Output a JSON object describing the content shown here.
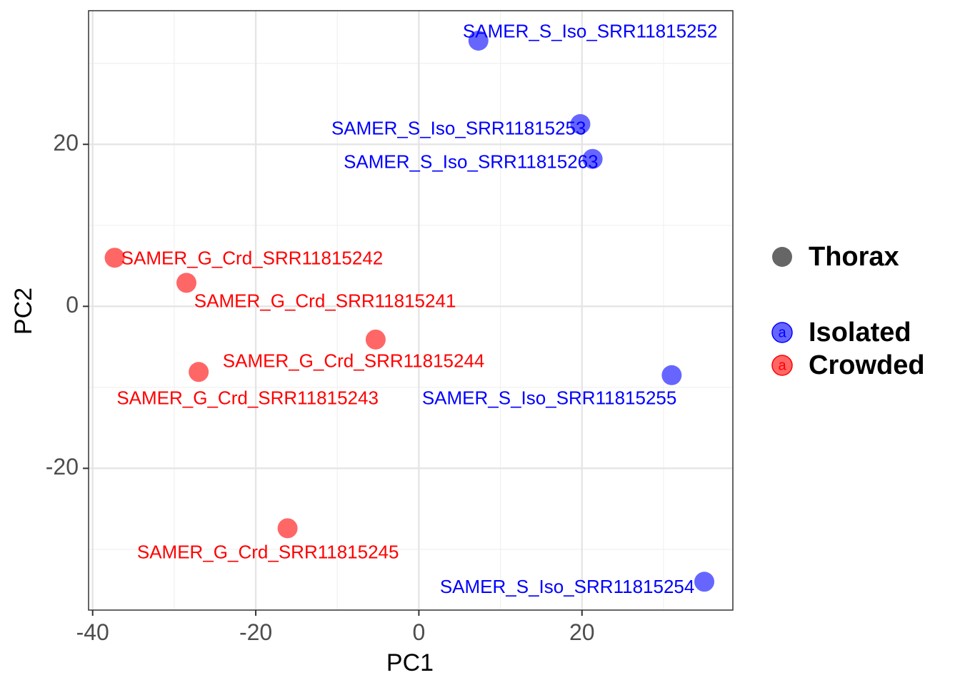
{
  "chart_data": {
    "type": "scatter",
    "xlabel": "PC1",
    "ylabel": "PC2",
    "xlim": [
      -40.5,
      38.5
    ],
    "ylim": [
      -37.5,
      36.5
    ],
    "x_ticks": [
      -40,
      -20,
      0,
      20
    ],
    "y_ticks": [
      -20,
      0,
      20
    ],
    "x_minor": [
      -30,
      -10,
      10,
      30
    ],
    "y_minor": [
      -30,
      -10,
      10,
      30
    ],
    "grid": true,
    "legend_position": "right",
    "legend": {
      "shape_entry": "Thorax",
      "groups": [
        {
          "name": "Isolated",
          "color": "#0000ff",
          "key_letter": "a"
        },
        {
          "name": "Crowded",
          "color": "#ff0000",
          "key_letter": "a"
        }
      ],
      "shape_color": "#666666"
    },
    "colors": {
      "Isolated_point": "#6666ff",
      "Crowded_point": "#ff6666",
      "Isolated_text": "#0000ff",
      "Crowded_text": "#ff0000"
    },
    "points": [
      {
        "label": "SAMER_S_Iso_SRR11815252",
        "group": "Isolated",
        "x": 7.3,
        "y": 32.8,
        "label_x": 21.0,
        "label_y": 33.8,
        "anchor": "middle"
      },
      {
        "label": "SAMER_S_Iso_SRR11815253",
        "group": "Isolated",
        "x": 19.8,
        "y": 22.5,
        "label_x": 20.5,
        "label_y": 21.8,
        "anchor": "end"
      },
      {
        "label": "SAMER_S_Iso_SRR11815263",
        "group": "Isolated",
        "x": 21.3,
        "y": 18.2,
        "label_x": 22.0,
        "label_y": 17.7,
        "anchor": "end"
      },
      {
        "label": "SAMER_G_Crd_SRR11815242",
        "group": "Crowded",
        "x": -37.3,
        "y": 6.0,
        "label_x": -36.5,
        "label_y": 5.8,
        "anchor": "start"
      },
      {
        "label": "SAMER_G_Crd_SRR11815241",
        "group": "Crowded",
        "x": -28.5,
        "y": 2.9,
        "label_x": -11.5,
        "label_y": 0.5,
        "anchor": "middle"
      },
      {
        "label": "SAMER_G_Crd_SRR11815244",
        "group": "Crowded",
        "x": -5.3,
        "y": -4.1,
        "label_x": -8.0,
        "label_y": -6.9,
        "anchor": "middle"
      },
      {
        "label": "SAMER_G_Crd_SRR11815243",
        "group": "Crowded",
        "x": -27.0,
        "y": -8.1,
        "label_x": -21.0,
        "label_y": -11.5,
        "anchor": "middle"
      },
      {
        "label": "SAMER_S_Iso_SRR11815255",
        "group": "Isolated",
        "x": 31.0,
        "y": -8.5,
        "label_x": 16.0,
        "label_y": -11.5,
        "anchor": "middle"
      },
      {
        "label": "SAMER_G_Crd_SRR11815245",
        "group": "Crowded",
        "x": -16.1,
        "y": -27.4,
        "label_x": -18.5,
        "label_y": -30.5,
        "anchor": "middle"
      },
      {
        "label": "SAMER_S_Iso_SRR11815254",
        "group": "Isolated",
        "x": 35.0,
        "y": -34.0,
        "label_x": 33.8,
        "label_y": -34.8,
        "anchor": "end"
      }
    ]
  }
}
